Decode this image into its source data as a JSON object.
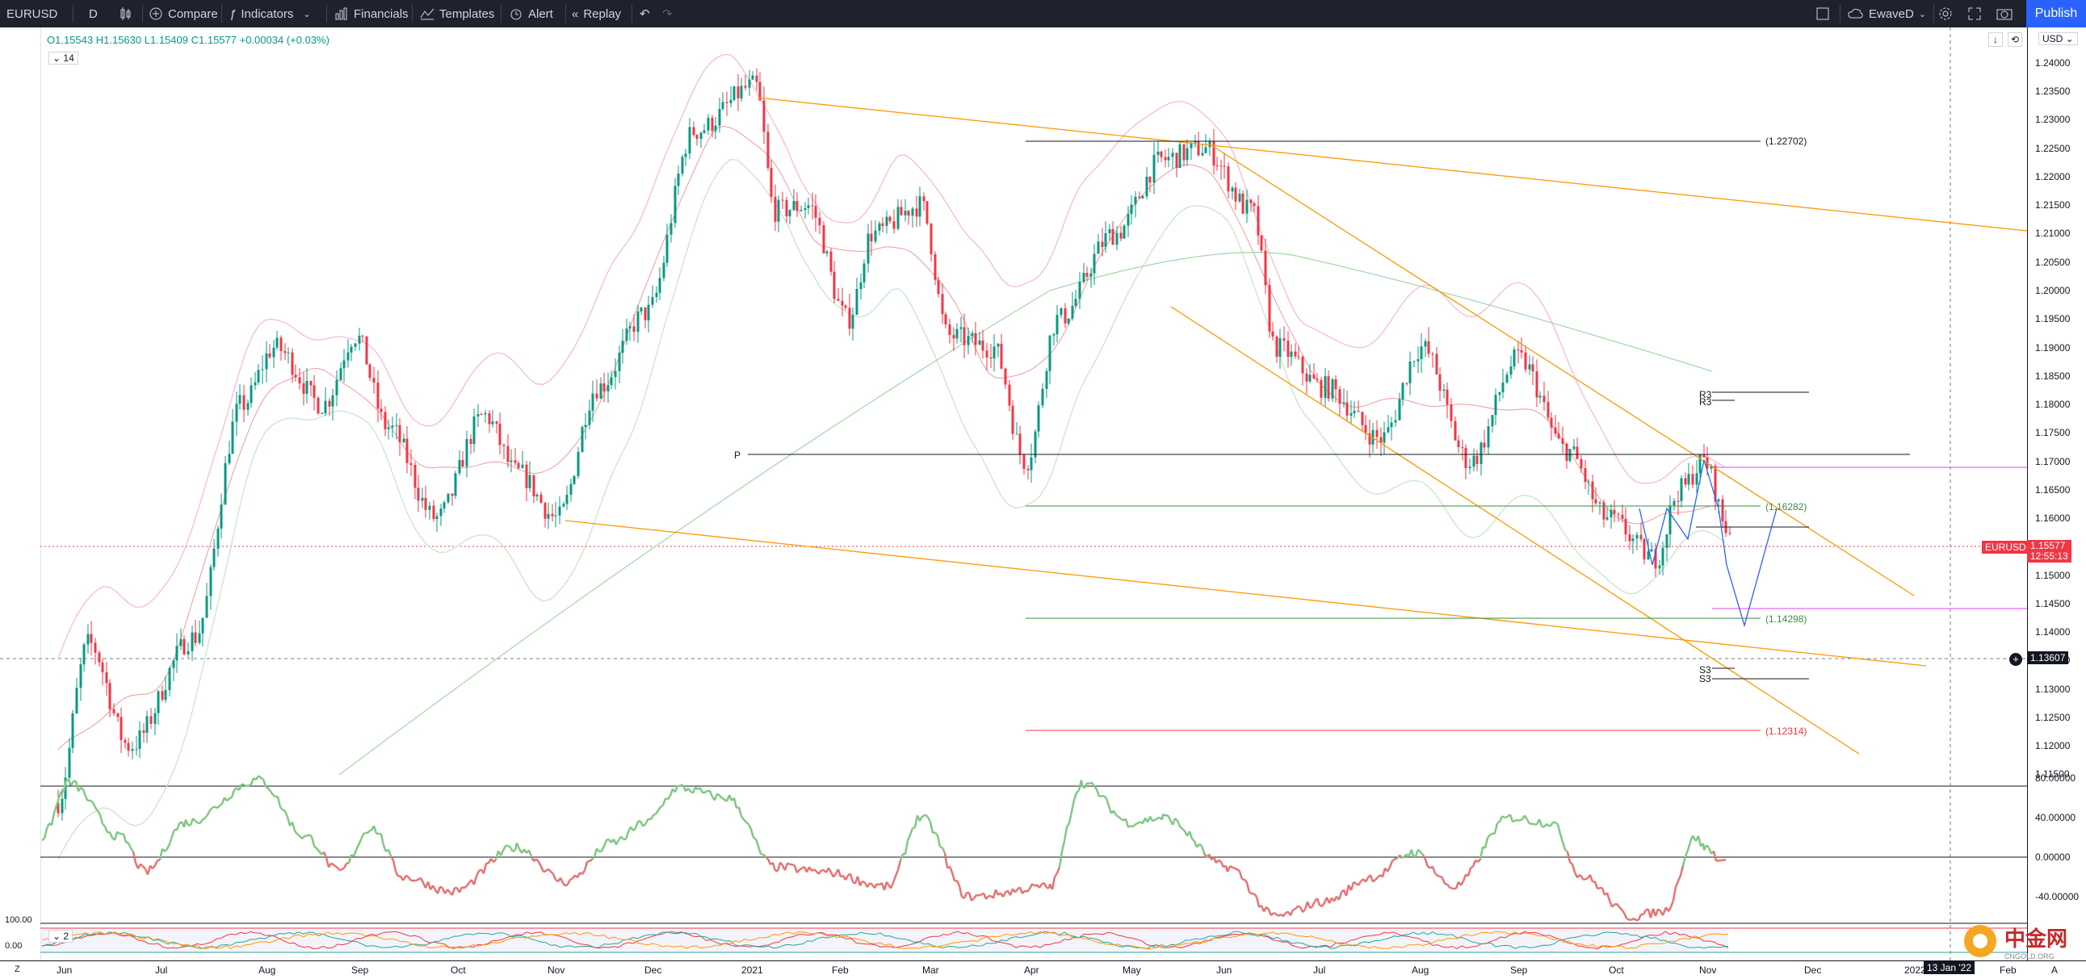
{
  "toolbar": {
    "symbol": "EURUSD",
    "interval": "D",
    "compare": "Compare",
    "indicators": "Indicators",
    "financials": "Financials",
    "templates": "Templates",
    "alert": "Alert",
    "replay": "Replay",
    "layout_name": "EwaveD",
    "publish": "Publish",
    "accent": "#2962ff"
  },
  "legend": {
    "open": "O1.15543",
    "high": "H1.15630",
    "low": "L1.15409",
    "close": "C1.15577",
    "change": "+0.00034 (+0.03%)",
    "length_badge": "14",
    "osc_badge": "2"
  },
  "price_axis": {
    "currency": "USD",
    "ticks": [
      "1.24000",
      "1.23500",
      "1.23000",
      "1.22500",
      "1.22000",
      "1.21500",
      "1.21000",
      "1.20500",
      "1.20000",
      "1.19500",
      "1.19000",
      "1.18500",
      "1.18000",
      "1.17500",
      "1.17000",
      "1.16500",
      "1.16000",
      "1.15500",
      "1.15000",
      "1.14500",
      "1.14000",
      "1.13500",
      "1.13000",
      "1.12500",
      "1.12000",
      "1.11500"
    ],
    "current_symbol": "EURUSD",
    "current_price": "1.15577",
    "countdown": "12:55:13",
    "crosshair_price": "1.13607"
  },
  "indicator_axis": {
    "ticks": [
      "80.00000",
      "40.00000",
      "0.00000",
      "-40.00000"
    ],
    "stoch_ticks": [
      "100.00",
      "0.00"
    ]
  },
  "time_axis": {
    "labels": [
      "Jun",
      "Jul",
      "Aug",
      "Sep",
      "Oct",
      "Nov",
      "Dec",
      "2021",
      "Feb",
      "Mar",
      "Apr",
      "May",
      "Jun",
      "Jul",
      "Aug",
      "Sep",
      "Oct",
      "Nov",
      "Dec",
      "2022",
      "Feb",
      "A"
    ],
    "crosshair_date": "13 Jan '22"
  },
  "levels": {
    "l1": "(1.22702)",
    "l2": "(1.16282)",
    "l3": "(1.14298)",
    "l4": "(1.12314)",
    "pivot": "P",
    "r3a": "R3",
    "r3b": "R3",
    "s3a": "S3",
    "s3b": "S3"
  },
  "colors": {
    "up": "#089981",
    "down": "#f23645",
    "trend": "#ff9800",
    "level_green": "#388e3c",
    "level_red": "#f23645",
    "magenta": "#e040fb",
    "wave": "#2962ff"
  },
  "watermark": {
    "brand": "中金网",
    "domain": "CNGOLD.ORG"
  },
  "chart_data": {
    "type": "candlestick",
    "symbol": "EURUSD",
    "interval": "D",
    "ylim": [
      1.1125,
      1.2415
    ],
    "x_range": [
      "2020-06",
      "2022-04"
    ],
    "overlays": [
      "Bollinger Bands",
      "moving average",
      "trend lines",
      "pivot points"
    ],
    "oscillator": {
      "ylim": [
        -70,
        90
      ],
      "ticks": [
        80,
        40,
        0,
        -40
      ]
    },
    "stochastic": {
      "ylim": [
        0,
        100
      ]
    }
  }
}
